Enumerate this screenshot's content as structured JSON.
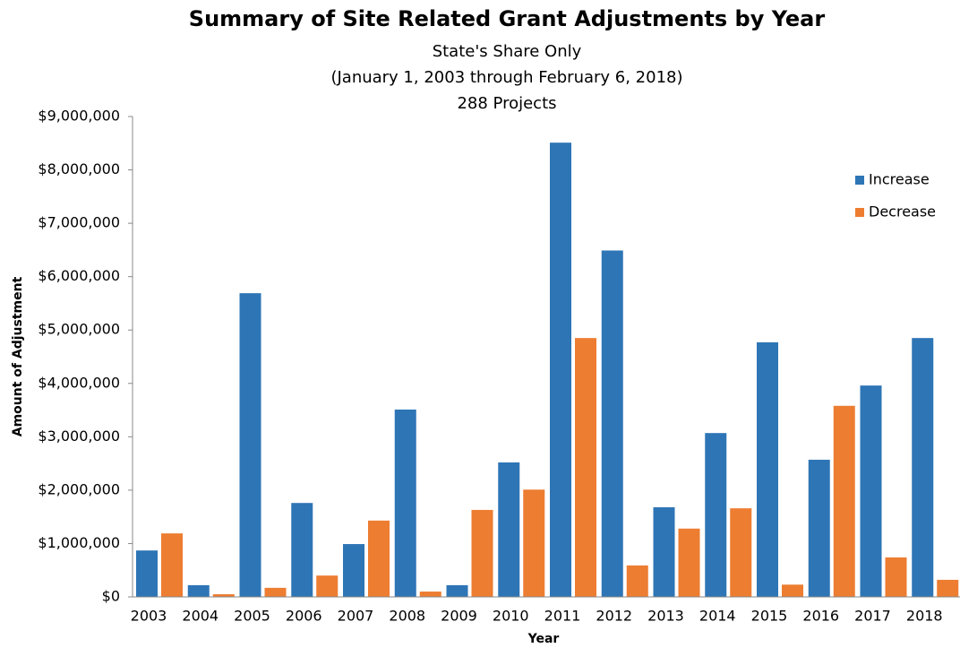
{
  "chart_data": {
    "type": "bar",
    "title": "Summary of Site Related Grant Adjustments by Year",
    "subtitle": [
      "State's Share Only",
      "(January 1, 2003 through February 6, 2018)",
      "288 Projects"
    ],
    "x_label": "Year",
    "y_label": "Amount of Adjustment",
    "categories": [
      "2003",
      "2004",
      "2005",
      "2006",
      "2007",
      "2008",
      "2009",
      "2010",
      "2011",
      "2012",
      "2013",
      "2014",
      "2015",
      "2016",
      "2017",
      "2018"
    ],
    "series": [
      {
        "name": "Increase",
        "color": "#2e75b6",
        "values": [
          870000,
          220000,
          5690000,
          1760000,
          990000,
          3510000,
          220000,
          2520000,
          8510000,
          6490000,
          1680000,
          3070000,
          4770000,
          2570000,
          3960000,
          4850000
        ]
      },
      {
        "name": "Decrease",
        "color": "#ed7d31",
        "values": [
          1190000,
          50000,
          170000,
          400000,
          1430000,
          100000,
          1630000,
          2010000,
          4850000,
          590000,
          1280000,
          1660000,
          230000,
          3580000,
          740000,
          320000
        ]
      }
    ],
    "ylim": [
      0,
      9000000
    ],
    "yticks": [
      {
        "value": 0,
        "label": "$0"
      },
      {
        "value": 1000000,
        "label": "$1,000,000"
      },
      {
        "value": 2000000,
        "label": "$2,000,000"
      },
      {
        "value": 3000000,
        "label": "$3,000,000"
      },
      {
        "value": 4000000,
        "label": "$4,000,000"
      },
      {
        "value": 5000000,
        "label": "$5,000,000"
      },
      {
        "value": 6000000,
        "label": "$6,000,000"
      },
      {
        "value": 7000000,
        "label": "$7,000,000"
      },
      {
        "value": 8000000,
        "label": "$8,000,000"
      },
      {
        "value": 9000000,
        "label": "$9,000,000"
      }
    ],
    "legend": "upper right",
    "grid": false
  }
}
